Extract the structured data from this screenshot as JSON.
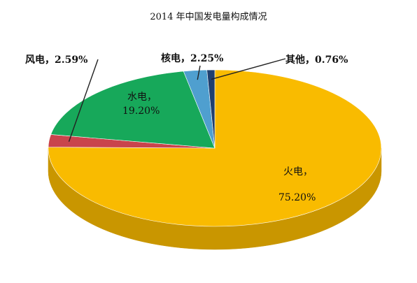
{
  "chart_data": {
    "type": "pie",
    "title": "2014 年中国发电量构成情况",
    "slices": [
      {
        "key": "fire",
        "name": "火电",
        "value": 75.2,
        "value_text": "75.20%",
        "color": "#f9bb00",
        "side_color": "#c99600"
      },
      {
        "key": "wind",
        "name": "风电",
        "value": 2.59,
        "value_text": "2.59%",
        "color": "#c9444c",
        "side_color": "#8f2a31"
      },
      {
        "key": "water",
        "name": "水电",
        "value": 19.2,
        "value_text": "19.20%",
        "color": "#17a85a",
        "side_color": "#0e7a40"
      },
      {
        "key": "nuclear",
        "name": "核电",
        "value": 2.25,
        "value_text": "2.25%",
        "color": "#4f9fcf",
        "side_color": "#2e6f98"
      },
      {
        "key": "other",
        "name": "其他",
        "value": 0.76,
        "value_text": "0.76%",
        "color": "#1f3f6f",
        "side_color": "#14294a"
      }
    ],
    "labels": {
      "fire": {
        "line1": "火电，",
        "line2": "75.20%"
      },
      "water": {
        "line1": "水电，",
        "line2": "19.20%"
      },
      "wind": {
        "text": "风电，2.59%"
      },
      "nuclear": {
        "text": "核电，2.25%"
      },
      "other": {
        "text": "其他，0.76%"
      }
    },
    "style": "3d"
  }
}
